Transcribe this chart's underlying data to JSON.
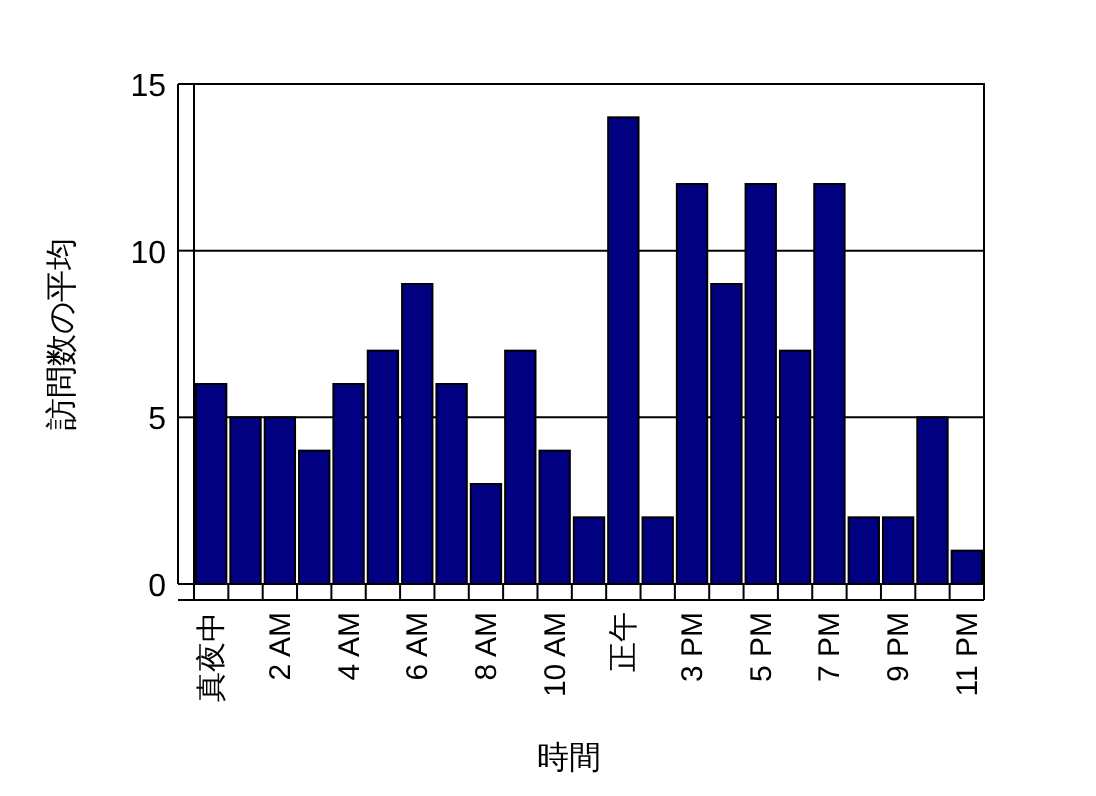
{
  "chart_data": {
    "type": "bar",
    "xlabel": "時間",
    "ylabel": "訪問数の平均",
    "categories": [
      "真夜中",
      null,
      "2 AM",
      null,
      "4 AM",
      null,
      "6 AM",
      null,
      "8 AM",
      null,
      "10 AM",
      null,
      "正午",
      null,
      "3 PM",
      null,
      "5 PM",
      null,
      "7 PM",
      null,
      "9 PM",
      null,
      "11 PM"
    ],
    "values": [
      6,
      5,
      5,
      4,
      6,
      7,
      9,
      6,
      3,
      7,
      4,
      2,
      14,
      2,
      12,
      9,
      12,
      7,
      12,
      2,
      2,
      5,
      1
    ],
    "color": "#000080",
    "ylim": [
      0,
      15
    ],
    "yticks": [
      0,
      5,
      10,
      15
    ],
    "grid": "y"
  }
}
